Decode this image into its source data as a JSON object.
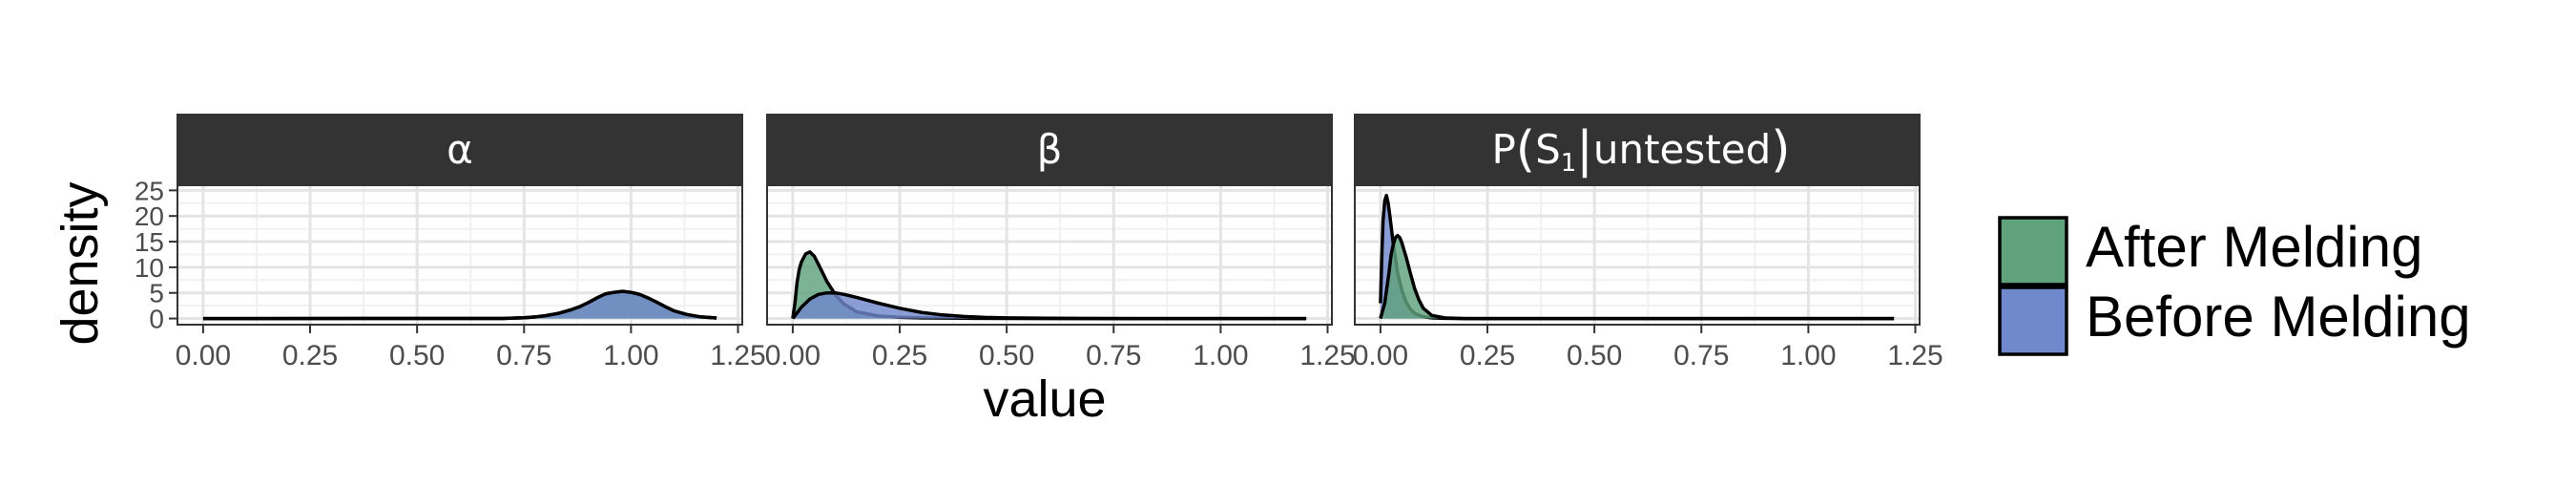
{
  "chart_data": {
    "type": "area",
    "xlabel": "value",
    "ylabel": "density",
    "xlim": [
      -0.06,
      1.26
    ],
    "ylim": [
      -1.2,
      26
    ],
    "x_ticks": [
      "0.00",
      "0.25",
      "0.50",
      "0.75",
      "1.00",
      "1.25"
    ],
    "y_ticks": [
      "0",
      "5",
      "10",
      "15",
      "20",
      "25"
    ],
    "grid": true,
    "legend": {
      "position": "right",
      "entries": [
        {
          "label": "After Melding",
          "color": "#5fa27c"
        },
        {
          "label": "Before Melding",
          "color": "#7088cc"
        }
      ]
    },
    "facets": [
      {
        "label": "α",
        "label_display": {
          "main": "α"
        },
        "series": [
          {
            "name": "After Melding",
            "color": "#5fa27c",
            "x": [
              0.0,
              0.7,
              0.75,
              0.78,
              0.8,
              0.83,
              0.86,
              0.88,
              0.9,
              0.92,
              0.94,
              0.96,
              0.98,
              1.0,
              1.02,
              1.04,
              1.06,
              1.08,
              1.1,
              1.13,
              1.16,
              1.2
            ],
            "y": [
              0.0,
              0.02,
              0.15,
              0.35,
              0.55,
              1.0,
              1.7,
              2.3,
              3.1,
              4.0,
              4.8,
              5.1,
              5.3,
              5.1,
              4.7,
              4.0,
              3.2,
              2.3,
              1.5,
              0.8,
              0.35,
              0.1
            ]
          },
          {
            "name": "Before Melding",
            "color": "#7088cc",
            "x": [
              0.0,
              0.7,
              0.75,
              0.78,
              0.8,
              0.83,
              0.86,
              0.88,
              0.9,
              0.92,
              0.94,
              0.96,
              0.98,
              1.0,
              1.02,
              1.04,
              1.06,
              1.08,
              1.1,
              1.13,
              1.16,
              1.2
            ],
            "y": [
              0.0,
              0.02,
              0.15,
              0.35,
              0.55,
              1.0,
              1.7,
              2.3,
              3.1,
              4.0,
              4.8,
              5.1,
              5.3,
              5.1,
              4.7,
              4.0,
              3.2,
              2.3,
              1.5,
              0.8,
              0.35,
              0.1
            ]
          }
        ]
      },
      {
        "label": "β",
        "label_display": {
          "main": "β"
        },
        "series": [
          {
            "name": "After Melding",
            "color": "#5fa27c",
            "x": [
              0.0,
              0.005,
              0.01,
              0.015,
              0.02,
              0.03,
              0.04,
              0.05,
              0.06,
              0.07,
              0.08,
              0.1,
              0.12,
              0.15,
              0.2,
              0.25,
              0.3,
              0.4,
              0.5,
              0.6,
              0.8,
              1.2
            ],
            "y": [
              0.0,
              3.0,
              7.0,
              9.5,
              11.0,
              12.6,
              13.0,
              12.2,
              10.6,
              8.9,
              7.2,
              4.6,
              2.8,
              1.3,
              0.5,
              0.25,
              0.12,
              0.05,
              0.02,
              0.0,
              0.0,
              0.0
            ]
          },
          {
            "name": "Before Melding",
            "color": "#7088cc",
            "x": [
              0.0,
              0.02,
              0.04,
              0.06,
              0.08,
              0.1,
              0.12,
              0.15,
              0.2,
              0.25,
              0.3,
              0.35,
              0.4,
              0.45,
              0.5,
              0.6,
              0.7,
              0.8,
              1.0,
              1.2
            ],
            "y": [
              0.0,
              2.2,
              3.8,
              4.7,
              5.0,
              5.0,
              4.7,
              4.1,
              3.0,
              2.0,
              1.2,
              0.7,
              0.4,
              0.22,
              0.12,
              0.04,
              0.01,
              0.0,
              0.0,
              0.0
            ]
          }
        ]
      },
      {
        "label": "P(S1|untested)",
        "label_display": {
          "prefix": "P",
          "s": "S",
          "sub": "1",
          "rest": "untested"
        },
        "series": [
          {
            "name": "Before Melding",
            "color": "#7088cc",
            "x": [
              0.0,
              0.003,
              0.006,
              0.01,
              0.014,
              0.018,
              0.022,
              0.03,
              0.04,
              0.05,
              0.06,
              0.07,
              0.08,
              0.1,
              0.12,
              0.15,
              0.2,
              0.3,
              0.5,
              1.2
            ],
            "y": [
              3.0,
              12.0,
              19.0,
              23.0,
              24.0,
              22.5,
              20.0,
              14.5,
              9.0,
              5.5,
              3.2,
              1.8,
              1.0,
              0.35,
              0.12,
              0.03,
              0.0,
              0.0,
              0.0,
              0.0
            ]
          },
          {
            "name": "After Melding",
            "color": "#5fa27c",
            "x": [
              0.0,
              0.01,
              0.02,
              0.025,
              0.03,
              0.035,
              0.04,
              0.045,
              0.05,
              0.06,
              0.07,
              0.08,
              0.09,
              0.1,
              0.12,
              0.15,
              0.2,
              0.3,
              0.5,
              1.2
            ],
            "y": [
              0.0,
              3.0,
              9.0,
              12.5,
              14.5,
              15.8,
              16.2,
              15.8,
              14.8,
              12.0,
              8.8,
              5.8,
              3.6,
              2.0,
              0.6,
              0.12,
              0.0,
              0.0,
              0.0,
              0.0
            ]
          }
        ]
      }
    ]
  }
}
